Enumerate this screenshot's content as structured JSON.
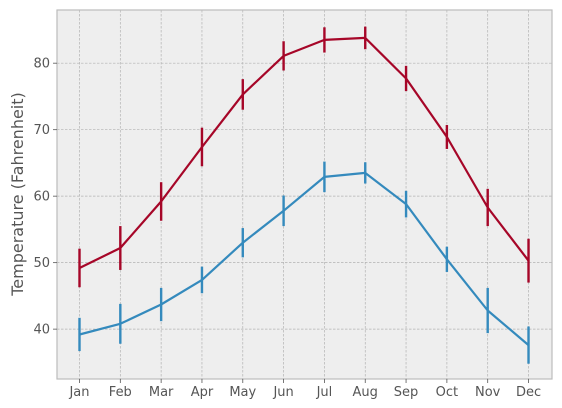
{
  "chart_data": {
    "type": "line",
    "title": "",
    "xlabel": "",
    "ylabel": "Temperature (Fahrenheit)",
    "categories": [
      "Jan",
      "Feb",
      "Mar",
      "Apr",
      "May",
      "Jun",
      "Jul",
      "Aug",
      "Sep",
      "Oct",
      "Nov",
      "Dec"
    ],
    "ylim": [
      32.5,
      88
    ],
    "yticks": [
      40,
      50,
      60,
      70,
      80
    ],
    "grid": true,
    "legend": "none",
    "series": [
      {
        "color": "#A60628",
        "values": [
          49.2,
          52.2,
          59.2,
          67.4,
          75.3,
          81.1,
          83.5,
          83.8,
          77.7,
          68.9,
          58.3,
          50.3
        ],
        "errors": [
          2.9,
          3.3,
          2.9,
          2.9,
          2.3,
          2.2,
          1.9,
          1.7,
          1.9,
          1.8,
          2.8,
          3.3
        ]
      },
      {
        "color": "#348ABD",
        "values": [
          39.2,
          40.8,
          43.7,
          47.4,
          53.0,
          57.8,
          62.9,
          63.5,
          58.8,
          50.5,
          42.8,
          37.6
        ],
        "errors": [
          2.5,
          3.0,
          2.5,
          2.0,
          2.2,
          2.3,
          2.3,
          1.6,
          2.0,
          1.9,
          3.4,
          2.8
        ]
      }
    ]
  }
}
